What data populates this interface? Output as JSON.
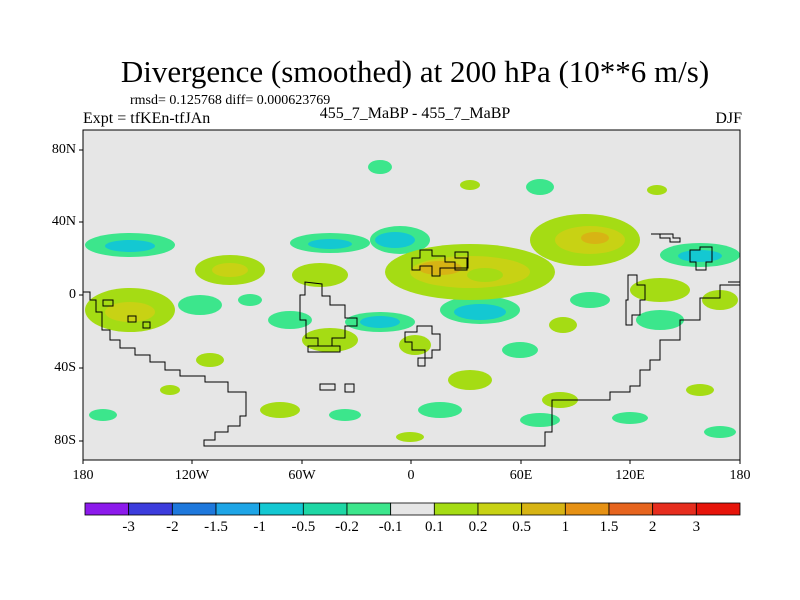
{
  "figure": {
    "title": "Divergence (smoothed) at 200 hPa (10**6 m/s)",
    "stats": "rmsd= 0.125768 diff= 0.000623769",
    "experiment": "Expt = tfKEn-tfJAn",
    "runs": "455_7_MaBP - 455_7_MaBP",
    "season": "DJF"
  },
  "axes": {
    "lat_labels": [
      "80N",
      "40N",
      "0",
      "40S",
      "80S"
    ],
    "lon_labels": [
      "180",
      "120W",
      "60W",
      "0",
      "60E",
      "120E",
      "180"
    ]
  },
  "colorbar": {
    "labels": [
      "-3",
      "-2",
      "-1.5",
      "-1",
      "-0.5",
      "-0.2",
      "-0.1",
      "0.1",
      "0.2",
      "0.5",
      "1",
      "1.5",
      "2",
      "3"
    ],
    "colors": [
      "#8c1aeb",
      "#3c3cdc",
      "#1e78dc",
      "#1ea5e6",
      "#14c8d2",
      "#1ed7a5",
      "#3ce68c",
      "#e6e6e6",
      "#a5dc14",
      "#c8d214",
      "#d7b414",
      "#e69114",
      "#e6641e",
      "#e62d1e",
      "#e6140a"
    ]
  },
  "map": {
    "background_color": "#e6e6e6",
    "coast_color": "#000000"
  }
}
